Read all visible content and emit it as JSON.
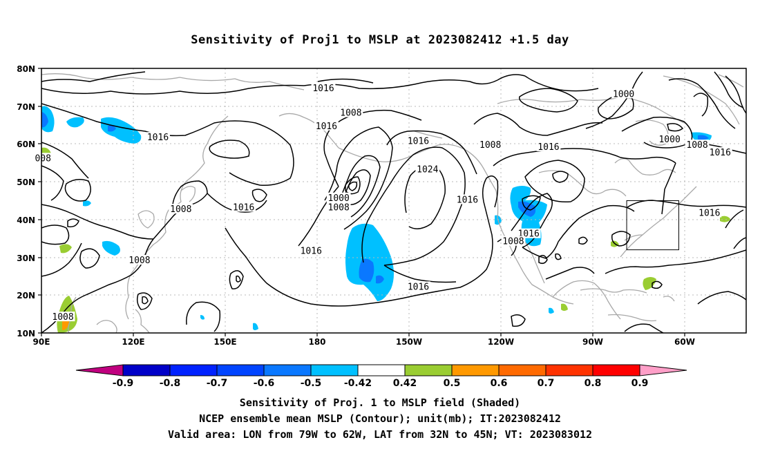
{
  "title": "Sensitivity of Proj1 to MSLP at 2023082412 +1.5 day",
  "axes": {
    "lon_ticks": [
      "90E",
      "120E",
      "150E",
      "180",
      "150W",
      "120W",
      "90W",
      "60W"
    ],
    "lat_ticks": [
      "80N",
      "70N",
      "60N",
      "50N",
      "40N",
      "30N",
      "20N",
      "10N"
    ]
  },
  "colorbar": {
    "labels": [
      "-0.9",
      "-0.8",
      "-0.7",
      "-0.6",
      "-0.5",
      "-0.42",
      "0.42",
      "0.5",
      "0.6",
      "0.7",
      "0.8",
      "0.9"
    ],
    "colors": [
      "#c0007f",
      "#0000c8",
      "#0022ff",
      "#0044ff",
      "#0a78ff",
      "#00c0ff",
      "#ffffff",
      "#9acd32",
      "#ff9900",
      "#ff6a00",
      "#ff3300",
      "#ff0000",
      "#ff9fc8"
    ]
  },
  "contour_labels": [
    {
      "text": "1016",
      "lon": 182,
      "lat": 74.5
    },
    {
      "text": "1008",
      "lon": 191,
      "lat": 68
    },
    {
      "text": "1016",
      "lon": 183,
      "lat": 64.5
    },
    {
      "text": "1016",
      "lon": 128,
      "lat": 61.5
    },
    {
      "text": "1016",
      "lon": 213,
      "lat": 60.5
    },
    {
      "text": "1024",
      "lon": 216,
      "lat": 53
    },
    {
      "text": "1000",
      "lon": 280,
      "lat": 73
    },
    {
      "text": "1000",
      "lon": 295,
      "lat": 61
    },
    {
      "text": "1008",
      "lon": 236.5,
      "lat": 59.5
    },
    {
      "text": "1016",
      "lon": 255.5,
      "lat": 59
    },
    {
      "text": "1008",
      "lon": 304,
      "lat": 59.5
    },
    {
      "text": "1016",
      "lon": 311.5,
      "lat": 57.5
    },
    {
      "text": "1000",
      "lon": 187,
      "lat": 45.5
    },
    {
      "text": "1008",
      "lon": 187,
      "lat": 43
    },
    {
      "text": "1016",
      "lon": 156,
      "lat": 43
    },
    {
      "text": "1008",
      "lon": 135.5,
      "lat": 42.5
    },
    {
      "text": "1016",
      "lon": 229,
      "lat": 45
    },
    {
      "text": "1016",
      "lon": 249,
      "lat": 36
    },
    {
      "text": "1008",
      "lon": 244,
      "lat": 34
    },
    {
      "text": "1016",
      "lon": 308,
      "lat": 41.5
    },
    {
      "text": "1016",
      "lon": 178,
      "lat": 31.5
    },
    {
      "text": "1008",
      "lon": 122,
      "lat": 29
    },
    {
      "text": "1016",
      "lon": 213,
      "lat": 22
    },
    {
      "text": "1008",
      "lon": 97,
      "lat": 14
    },
    {
      "text": "008",
      "lon": 90.5,
      "lat": 56
    }
  ],
  "valid_area_box": {
    "lon_min": 281,
    "lon_max": 298,
    "lat_min": 32,
    "lat_max": 45
  },
  "captions": {
    "line1": "Sensitivity of Proj. 1 to MSLP field (Shaded)",
    "line2": "NCEP ensemble mean MSLP (Contour); unit(mb); IT:2023082412",
    "line3": "Valid area: LON from 79W to 62W, LAT from 32N to 45N; VT: 2023083012"
  }
}
